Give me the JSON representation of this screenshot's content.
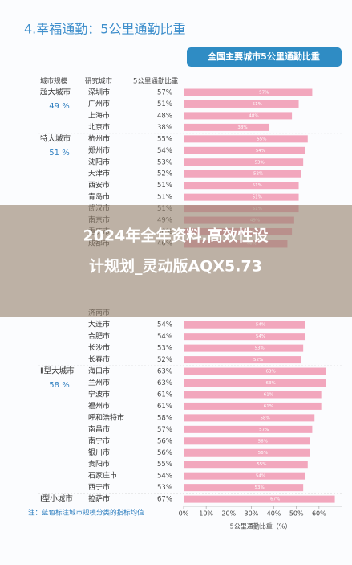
{
  "chart_data": {
    "type": "barh",
    "title": "4.幸福通勤：5公里通勤比重",
    "subtitle": "全国主要城市5公里通勤比重",
    "column_headers": [
      "城市规模",
      "研究城市",
      "5公里通勤比重"
    ],
    "groups": [
      {
        "name": "超大城市",
        "mean": 49,
        "mean_label": "49 %"
      },
      {
        "name": "特大城市",
        "mean": 51,
        "mean_label": "51 %"
      },
      {
        "name": "Ⅱ型大城市",
        "mean": 58,
        "mean_label": "58 %"
      },
      {
        "name": "Ⅰ型小城市"
      }
    ],
    "categories": [
      "深圳市",
      "广州市",
      "上海市",
      "北京市",
      "杭州市",
      "郑州市",
      "沈阳市",
      "天津市",
      "西安市",
      "青岛市",
      "武汉市",
      "南京市",
      "重庆市",
      "成都市",
      null,
      null,
      null,
      null,
      null,
      "济南市",
      "大连市",
      "合肥市",
      "长沙市",
      "长春市",
      "海口市",
      "兰州市",
      "宁波市",
      "福州市",
      "呼和浩特市",
      "南昌市",
      "南宁市",
      "银川市",
      "贵阳市",
      "石家庄市",
      "西宁市",
      "拉萨市"
    ],
    "values": [
      57,
      51,
      48,
      38,
      55,
      54,
      53,
      52,
      51,
      51,
      51,
      49,
      48,
      46,
      null,
      null,
      null,
      null,
      null,
      null,
      54,
      54,
      53,
      52,
      63,
      63,
      61,
      61,
      58,
      57,
      56,
      56,
      55,
      54,
      53,
      67
    ],
    "value_labels": [
      "57%",
      "51%",
      "48%",
      "38%",
      "55%",
      "54%",
      "53%",
      "52%",
      "51%",
      "51%",
      "51%",
      "49%",
      "48%",
      "46%",
      null,
      null,
      null,
      null,
      null,
      null,
      "54%",
      "54%",
      "53%",
      "52%",
      "63%",
      "63%",
      "61%",
      "61%",
      "58%",
      "57%",
      "56%",
      "56%",
      "55%",
      "54%",
      "53%",
      "67%"
    ],
    "color": "#f2a7bd",
    "xlim": [
      0,
      70
    ],
    "xticks": [
      {
        "value": 0,
        "label": "0%"
      },
      {
        "value": 10,
        "label": "10%"
      },
      {
        "value": 20,
        "label": "20%"
      },
      {
        "value": 30,
        "label": "30%"
      },
      {
        "value": 40,
        "label": "40%"
      },
      {
        "value": 50,
        "label": "50%"
      },
      {
        "value": 60,
        "label": "60%"
      }
    ],
    "xlabel": "5公里通勤比重（%）",
    "note": "注：蓝色标注城市规模分类的指标均值"
  },
  "overlay_text": [
    "2024年全年资料,高效性设",
    "计规划_灵动版AQX5.73"
  ]
}
